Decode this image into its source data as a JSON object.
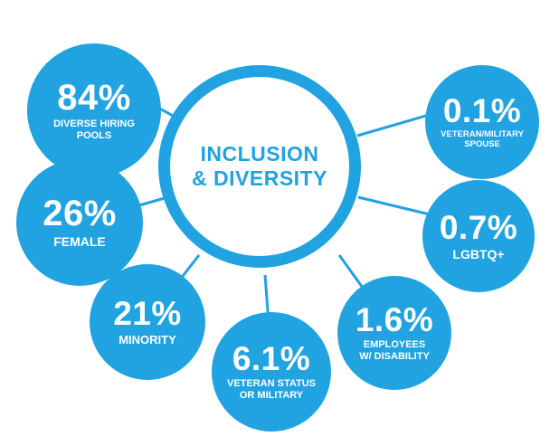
{
  "center": {
    "line1": "INCLUSION",
    "line2": "& DIVERSITY"
  },
  "stats": [
    {
      "id": "diverse-hiring",
      "value": "84%",
      "label_lines": [
        "DIVERSE HIRING",
        "POOLS"
      ]
    },
    {
      "id": "female",
      "value": "26%",
      "label_lines": [
        "FEMALE"
      ]
    },
    {
      "id": "minority",
      "value": "21%",
      "label_lines": [
        "MINORITY"
      ]
    },
    {
      "id": "veteran-status",
      "value": "6.1%",
      "label_lines": [
        "VETERAN STATUS",
        "OR MILITARY"
      ]
    },
    {
      "id": "disability",
      "value": "1.6%",
      "label_lines": [
        "EMPLOYEES",
        "W/ DISABILITY"
      ]
    },
    {
      "id": "lgbtq",
      "value": "0.7%",
      "label_lines": [
        "LGBTQ+"
      ]
    },
    {
      "id": "veteran-spouse",
      "value": "0.1%",
      "label_lines": [
        "VETERAN/MILITARY",
        "SPOUSE"
      ]
    }
  ],
  "colors": {
    "accent": "#20a3e0",
    "text_on_accent": "#ffffff",
    "background": "#ffffff"
  }
}
